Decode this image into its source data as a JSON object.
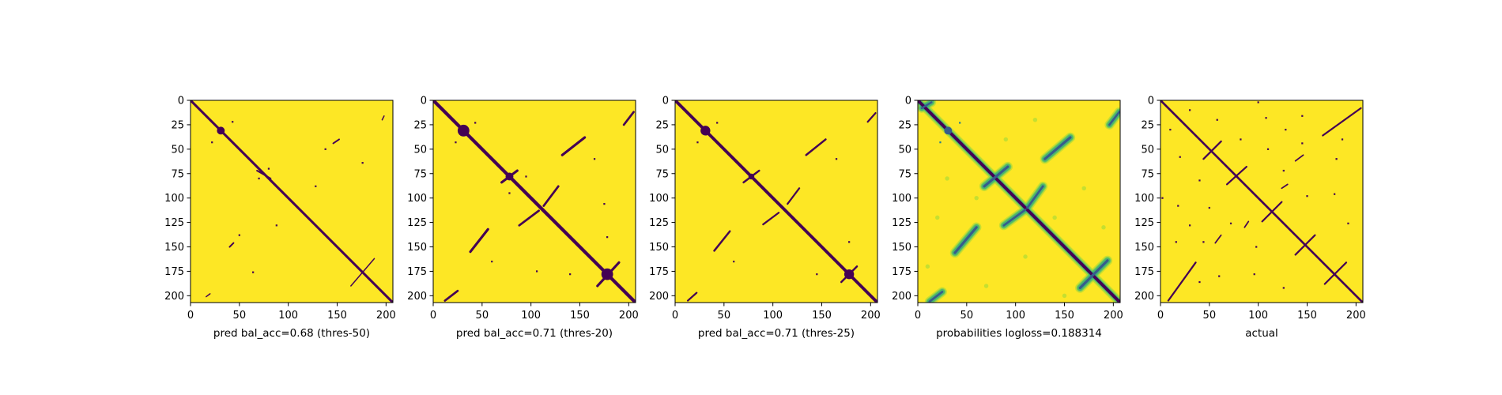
{
  "colors": {
    "background": "#fde725",
    "mark": "#440154",
    "viridis_mid_light": "#a0da39",
    "viridis_mid": "#4ac16d",
    "viridis_teal": "#1fa187",
    "viridis_blue": "#277f8e",
    "viridis_dark_blue": "#365c8d"
  },
  "chart_data": [
    {
      "type": "heatmap",
      "xlabel": "pred bal_acc=0.68 (thres-50)",
      "xlim": [
        0,
        207
      ],
      "ylim": [
        207,
        0
      ],
      "x_ticks": [
        0,
        50,
        100,
        150,
        200
      ],
      "y_ticks": [
        0,
        25,
        50,
        75,
        100,
        125,
        150,
        175,
        200
      ],
      "diagonal_width": 2.5,
      "features": [
        {
          "kind": "blob",
          "x": 31,
          "y": 31,
          "r": 4
        },
        {
          "kind": "seg",
          "x1": 68,
          "y1": 72,
          "x2": 82,
          "y2": 80,
          "w": 1.6
        },
        {
          "kind": "seg",
          "x1": 146,
          "y1": 44,
          "x2": 152,
          "y2": 40,
          "w": 1.6
        },
        {
          "kind": "seg",
          "x1": 40,
          "y1": 150,
          "x2": 44,
          "y2": 146,
          "w": 1.6
        },
        {
          "kind": "seg",
          "x1": 164,
          "y1": 190,
          "x2": 188,
          "y2": 162,
          "w": 1.2
        },
        {
          "kind": "seg",
          "x1": 16,
          "y1": 201,
          "x2": 20,
          "y2": 198,
          "w": 1.2
        },
        {
          "kind": "seg",
          "x1": 196,
          "y1": 20,
          "x2": 198,
          "y2": 16,
          "w": 1.2
        },
        {
          "kind": "dot",
          "x": 43,
          "y": 22
        },
        {
          "kind": "dot",
          "x": 22,
          "y": 43
        },
        {
          "kind": "dot",
          "x": 128,
          "y": 88
        },
        {
          "kind": "dot",
          "x": 88,
          "y": 128
        },
        {
          "kind": "dot",
          "x": 50,
          "y": 138
        },
        {
          "kind": "dot",
          "x": 70,
          "y": 80
        },
        {
          "kind": "dot",
          "x": 80,
          "y": 70
        },
        {
          "kind": "dot",
          "x": 138,
          "y": 50
        },
        {
          "kind": "dot",
          "x": 64,
          "y": 176
        },
        {
          "kind": "dot",
          "x": 176,
          "y": 64
        }
      ]
    },
    {
      "type": "heatmap",
      "xlabel": "pred bal_acc=0.71 (thres-20)",
      "xlim": [
        0,
        207
      ],
      "ylim": [
        207,
        0
      ],
      "x_ticks": [
        0,
        50,
        100,
        150,
        200
      ],
      "y_ticks": [
        0,
        25,
        50,
        75,
        100,
        125,
        150,
        175,
        200
      ],
      "diagonal_width": 3.5,
      "features": [
        {
          "kind": "blob",
          "x": 31,
          "y": 31,
          "r": 6
        },
        {
          "kind": "blob",
          "x": 78,
          "y": 78,
          "r": 4
        },
        {
          "kind": "blob",
          "x": 178,
          "y": 178,
          "r": 6
        },
        {
          "kind": "seg",
          "x1": 70,
          "y1": 84,
          "x2": 86,
          "y2": 72,
          "w": 2.5
        },
        {
          "kind": "seg",
          "x1": 168,
          "y1": 190,
          "x2": 190,
          "y2": 166,
          "w": 2.5
        },
        {
          "kind": "seg",
          "x1": 132,
          "y1": 56,
          "x2": 155,
          "y2": 38,
          "w": 2.5
        },
        {
          "kind": "seg",
          "x1": 38,
          "y1": 155,
          "x2": 56,
          "y2": 132,
          "w": 2.5
        },
        {
          "kind": "seg",
          "x1": 195,
          "y1": 25,
          "x2": 205,
          "y2": 12,
          "w": 2.2
        },
        {
          "kind": "seg",
          "x1": 12,
          "y1": 205,
          "x2": 25,
          "y2": 195,
          "w": 2.2
        },
        {
          "kind": "seg",
          "x1": 113,
          "y1": 108,
          "x2": 128,
          "y2": 88,
          "w": 2.2
        },
        {
          "kind": "seg",
          "x1": 88,
          "y1": 128,
          "x2": 108,
          "y2": 113,
          "w": 2.2
        },
        {
          "kind": "dot",
          "x": 23,
          "y": 43
        },
        {
          "kind": "dot",
          "x": 43,
          "y": 23
        },
        {
          "kind": "dot",
          "x": 60,
          "y": 165
        },
        {
          "kind": "dot",
          "x": 165,
          "y": 60
        },
        {
          "kind": "dot",
          "x": 78,
          "y": 95
        },
        {
          "kind": "dot",
          "x": 95,
          "y": 78
        },
        {
          "kind": "dot",
          "x": 178,
          "y": 140
        },
        {
          "kind": "dot",
          "x": 140,
          "y": 178
        },
        {
          "kind": "dot",
          "x": 175,
          "y": 106
        },
        {
          "kind": "dot",
          "x": 106,
          "y": 175
        }
      ]
    },
    {
      "type": "heatmap",
      "xlabel": "pred bal_acc=0.71 (thres-25)",
      "xlim": [
        0,
        207
      ],
      "ylim": [
        207,
        0
      ],
      "x_ticks": [
        0,
        50,
        100,
        150,
        200
      ],
      "y_ticks": [
        0,
        25,
        50,
        75,
        100,
        125,
        150,
        175,
        200
      ],
      "diagonal_width": 3.2,
      "features": [
        {
          "kind": "blob",
          "x": 31,
          "y": 31,
          "r": 5
        },
        {
          "kind": "blob",
          "x": 78,
          "y": 78,
          "r": 3
        },
        {
          "kind": "blob",
          "x": 178,
          "y": 178,
          "r": 5
        },
        {
          "kind": "seg",
          "x1": 70,
          "y1": 84,
          "x2": 86,
          "y2": 72,
          "w": 2.0
        },
        {
          "kind": "seg",
          "x1": 170,
          "y1": 186,
          "x2": 186,
          "y2": 170,
          "w": 2.0
        },
        {
          "kind": "seg",
          "x1": 134,
          "y1": 56,
          "x2": 154,
          "y2": 40,
          "w": 2.0
        },
        {
          "kind": "seg",
          "x1": 40,
          "y1": 154,
          "x2": 56,
          "y2": 134,
          "w": 2.0
        },
        {
          "kind": "seg",
          "x1": 197,
          "y1": 22,
          "x2": 205,
          "y2": 13,
          "w": 1.8
        },
        {
          "kind": "seg",
          "x1": 13,
          "y1": 205,
          "x2": 22,
          "y2": 197,
          "w": 1.8
        },
        {
          "kind": "seg",
          "x1": 115,
          "y1": 106,
          "x2": 127,
          "y2": 90,
          "w": 1.8
        },
        {
          "kind": "seg",
          "x1": 90,
          "y1": 127,
          "x2": 106,
          "y2": 115,
          "w": 1.8
        },
        {
          "kind": "dot",
          "x": 23,
          "y": 43
        },
        {
          "kind": "dot",
          "x": 43,
          "y": 23
        },
        {
          "kind": "dot",
          "x": 178,
          "y": 145
        },
        {
          "kind": "dot",
          "x": 145,
          "y": 178
        },
        {
          "kind": "dot",
          "x": 60,
          "y": 165
        },
        {
          "kind": "dot",
          "x": 165,
          "y": 60
        }
      ]
    },
    {
      "type": "heatmap",
      "xlabel": "probabilities logloss=0.188314",
      "xlim": [
        0,
        207
      ],
      "ylim": [
        207,
        0
      ],
      "x_ticks": [
        0,
        50,
        100,
        150,
        200
      ],
      "y_ticks": [
        0,
        25,
        50,
        75,
        100,
        125,
        150,
        175,
        200
      ],
      "diagonal_width": 3.2,
      "continuous": true,
      "features": [
        {
          "kind": "blob",
          "x": 31,
          "y": 31,
          "r": 4
        },
        {
          "kind": "seg",
          "x1": 68,
          "y1": 88,
          "x2": 92,
          "y2": 68,
          "w": 2.6
        },
        {
          "kind": "seg",
          "x1": 166,
          "y1": 192,
          "x2": 194,
          "y2": 164,
          "w": 2.6
        },
        {
          "kind": "seg",
          "x1": 130,
          "y1": 60,
          "x2": 156,
          "y2": 38,
          "w": 2.6
        },
        {
          "kind": "seg",
          "x1": 38,
          "y1": 156,
          "x2": 60,
          "y2": 130,
          "w": 2.6
        },
        {
          "kind": "seg",
          "x1": 196,
          "y1": 25,
          "x2": 206,
          "y2": 12,
          "w": 2.2
        },
        {
          "kind": "seg",
          "x1": 12,
          "y1": 206,
          "x2": 25,
          "y2": 196,
          "w": 2.2
        },
        {
          "kind": "seg",
          "x1": 112,
          "y1": 110,
          "x2": 128,
          "y2": 88,
          "w": 2.2
        },
        {
          "kind": "seg",
          "x1": 88,
          "y1": 128,
          "x2": 110,
          "y2": 112,
          "w": 2.2
        },
        {
          "kind": "seg",
          "x1": 4,
          "y1": 8,
          "x2": 14,
          "y2": 2,
          "w": 2.0
        },
        {
          "kind": "dot",
          "x": 23,
          "y": 43
        },
        {
          "kind": "dot",
          "x": 43,
          "y": 23
        }
      ]
    },
    {
      "type": "heatmap",
      "xlabel": "actual",
      "xlim": [
        0,
        207
      ],
      "ylim": [
        207,
        0
      ],
      "x_ticks": [
        0,
        50,
        100,
        150,
        200
      ],
      "y_ticks": [
        0,
        25,
        50,
        75,
        100,
        125,
        150,
        175,
        200
      ],
      "diagonal_width": 2.2,
      "features": [
        {
          "kind": "seg",
          "x1": 44,
          "y1": 60,
          "x2": 62,
          "y2": 42,
          "w": 1.8
        },
        {
          "kind": "seg",
          "x1": 68,
          "y1": 86,
          "x2": 88,
          "y2": 68,
          "w": 1.8
        },
        {
          "kind": "seg",
          "x1": 104,
          "y1": 124,
          "x2": 124,
          "y2": 104,
          "w": 1.8
        },
        {
          "kind": "seg",
          "x1": 138,
          "y1": 158,
          "x2": 158,
          "y2": 138,
          "w": 1.8
        },
        {
          "kind": "seg",
          "x1": 168,
          "y1": 188,
          "x2": 190,
          "y2": 166,
          "w": 1.8
        },
        {
          "kind": "seg",
          "x1": 166,
          "y1": 36,
          "x2": 205,
          "y2": 8,
          "w": 1.8
        },
        {
          "kind": "seg",
          "x1": 8,
          "y1": 205,
          "x2": 36,
          "y2": 166,
          "w": 1.8
        },
        {
          "kind": "seg",
          "x1": 124,
          "y1": 90,
          "x2": 130,
          "y2": 86,
          "w": 1.4
        },
        {
          "kind": "seg",
          "x1": 90,
          "y1": 124,
          "x2": 86,
          "y2": 130,
          "w": 1.4
        },
        {
          "kind": "seg",
          "x1": 138,
          "y1": 62,
          "x2": 146,
          "y2": 56,
          "w": 1.4
        },
        {
          "kind": "seg",
          "x1": 62,
          "y1": 138,
          "x2": 56,
          "y2": 146,
          "w": 1.4
        },
        {
          "kind": "dot",
          "x": 10,
          "y": 30
        },
        {
          "kind": "dot",
          "x": 30,
          "y": 10
        },
        {
          "kind": "dot",
          "x": 100,
          "y": 2
        },
        {
          "kind": "dot",
          "x": 2,
          "y": 100
        },
        {
          "kind": "dot",
          "x": 108,
          "y": 18
        },
        {
          "kind": "dot",
          "x": 18,
          "y": 108
        },
        {
          "kind": "dot",
          "x": 82,
          "y": 40
        },
        {
          "kind": "dot",
          "x": 40,
          "y": 82
        },
        {
          "kind": "dot",
          "x": 110,
          "y": 50
        },
        {
          "kind": "dot",
          "x": 50,
          "y": 110
        },
        {
          "kind": "dot",
          "x": 30,
          "y": 128
        },
        {
          "kind": "dot",
          "x": 128,
          "y": 30
        },
        {
          "kind": "dot",
          "x": 44,
          "y": 145
        },
        {
          "kind": "dot",
          "x": 145,
          "y": 44
        },
        {
          "kind": "dot",
          "x": 96,
          "y": 178
        },
        {
          "kind": "dot",
          "x": 178,
          "y": 96
        },
        {
          "kind": "dot",
          "x": 126,
          "y": 192
        },
        {
          "kind": "dot",
          "x": 192,
          "y": 126
        },
        {
          "kind": "dot",
          "x": 60,
          "y": 180
        },
        {
          "kind": "dot",
          "x": 180,
          "y": 60
        },
        {
          "kind": "dot",
          "x": 20,
          "y": 58
        },
        {
          "kind": "dot",
          "x": 58,
          "y": 20
        },
        {
          "kind": "dot",
          "x": 150,
          "y": 98
        },
        {
          "kind": "dot",
          "x": 98,
          "y": 150
        },
        {
          "kind": "dot",
          "x": 16,
          "y": 145
        },
        {
          "kind": "dot",
          "x": 145,
          "y": 16
        },
        {
          "kind": "dot",
          "x": 72,
          "y": 126
        },
        {
          "kind": "dot",
          "x": 126,
          "y": 72
        },
        {
          "kind": "dot",
          "x": 186,
          "y": 40
        },
        {
          "kind": "dot",
          "x": 40,
          "y": 186
        }
      ]
    }
  ]
}
